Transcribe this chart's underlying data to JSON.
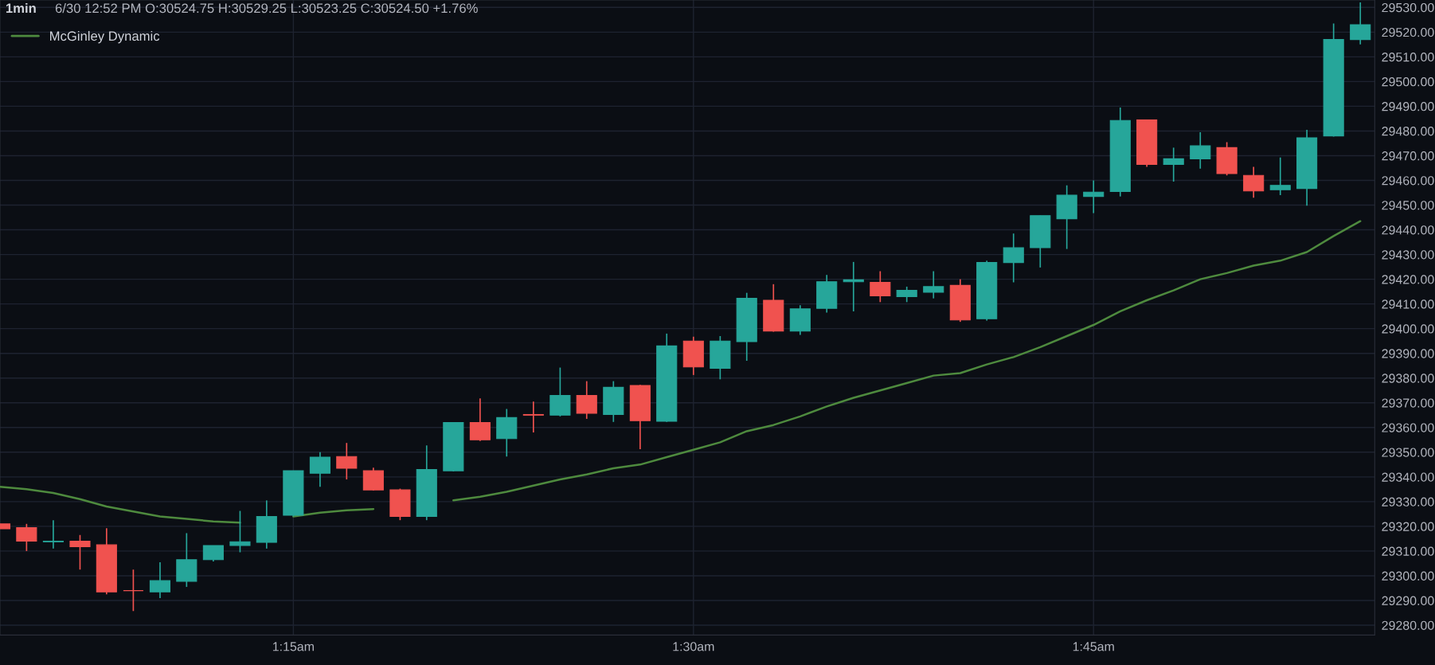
{
  "chart_data": {
    "type": "candlestick",
    "title": "1min",
    "subtitle": "6/30 12:52 PM O:30524.75 H:30529.25 L:30523.25 C:30524.50 +1.76%",
    "x": [
      1.0667,
      1.0833,
      1.1,
      1.1167,
      1.1333,
      1.15,
      1.1667,
      1.1833,
      1.2,
      1.2167,
      1.2333,
      1.25,
      1.2667,
      1.2833,
      1.3,
      1.3167,
      1.3333,
      1.35,
      1.3667,
      1.3833,
      1.4,
      1.4167,
      1.4333,
      1.45,
      1.4667,
      1.4833,
      1.5,
      1.5167,
      1.5333,
      1.55,
      1.5667,
      1.5833,
      1.6,
      1.6167,
      1.6333,
      1.65,
      1.6667,
      1.6833,
      1.7,
      1.7167,
      1.7333,
      1.75,
      1.7667,
      1.7833,
      1.8,
      1.8167,
      1.8333,
      1.85,
      1.8667,
      1.8833,
      1.9,
      1.9167
    ],
    "ohlc": [
      [
        29321,
        29321,
        29319,
        29319
      ],
      [
        29319.5,
        29321,
        29310,
        29314
      ],
      [
        29313.75,
        29322.5,
        29311,
        29314
      ],
      [
        29314,
        29316.5,
        29302.5,
        29311.75
      ],
      [
        29312.5,
        29319.25,
        29292.5,
        29293.5
      ],
      [
        29294,
        29302.5,
        29285.75,
        29294
      ],
      [
        29293.5,
        29305.5,
        29291,
        29298
      ],
      [
        29297.75,
        29317.25,
        29295.5,
        29306.5
      ],
      [
        29306.5,
        29312.25,
        29305.75,
        29312.25
      ],
      [
        29312.25,
        29326.25,
        29309.5,
        29313.75
      ],
      [
        29313.5,
        29330.5,
        29311,
        29324
      ],
      [
        29324.5,
        29342.5,
        29324,
        29342.5
      ],
      [
        29341.5,
        29350,
        29336,
        29348
      ],
      [
        29348.25,
        29353.75,
        29339,
        29343.5
      ],
      [
        29342.5,
        29343.75,
        29334.5,
        29334.75
      ],
      [
        29334.75,
        29335.25,
        29322.5,
        29324
      ],
      [
        29324,
        29352.75,
        29322.5,
        29343
      ],
      [
        29342.5,
        29362,
        29342.25,
        29362
      ],
      [
        29362,
        29371.75,
        29354.5,
        29355
      ],
      [
        29355.5,
        29367.5,
        29348.25,
        29364
      ],
      [
        29365.25,
        29370.5,
        29358,
        29365
      ],
      [
        29365,
        29384.25,
        29364.5,
        29373
      ],
      [
        29373,
        29378.75,
        29363.5,
        29365.75
      ],
      [
        29365.25,
        29378.75,
        29362.25,
        29376.25
      ],
      [
        29377,
        29377.25,
        29351.25,
        29362.75
      ],
      [
        29362.5,
        29398,
        29362.25,
        29393
      ],
      [
        29395,
        29396.75,
        29381.25,
        29384.5
      ],
      [
        29384,
        29397,
        29379.5,
        29395
      ],
      [
        29394.75,
        29414.5,
        29387,
        29412.25
      ],
      [
        29411.5,
        29418,
        29398.75,
        29399
      ],
      [
        29399,
        29409.5,
        29397.5,
        29408
      ],
      [
        29408.25,
        29421.75,
        29406.5,
        29419
      ],
      [
        29419,
        29427,
        29407,
        29419.75
      ],
      [
        29418.75,
        29423.25,
        29410.75,
        29413.25
      ],
      [
        29413,
        29417,
        29410.75,
        29415.5
      ],
      [
        29414.75,
        29423.25,
        29412.25,
        29417
      ],
      [
        29417.5,
        29420,
        29402.75,
        29403.5
      ],
      [
        29404,
        29427.5,
        29403.25,
        29426.75
      ],
      [
        29426.75,
        29438.5,
        29418.75,
        29432.75
      ],
      [
        29432.75,
        29445.75,
        29424.75,
        29445.75
      ],
      [
        29444.5,
        29458,
        29432.25,
        29454
      ],
      [
        29453.5,
        29460,
        29446.75,
        29455.25
      ],
      [
        29455.5,
        29489.5,
        29453.5,
        29484.25
      ],
      [
        29484.5,
        29484.5,
        29465.5,
        29466.5
      ],
      [
        29466.5,
        29473.25,
        29459.5,
        29468.75
      ],
      [
        29468.75,
        29479.5,
        29464.75,
        29474
      ],
      [
        29473.25,
        29475.5,
        29462,
        29462.75
      ],
      [
        29462,
        29465.5,
        29453,
        29455.75
      ],
      [
        29456.25,
        29469.25,
        29454,
        29458
      ],
      [
        29456.75,
        29480.5,
        29449.75,
        29477.25
      ],
      [
        29478,
        29523.5,
        29477.75,
        29517
      ],
      [
        29517,
        29532,
        29515,
        29523
      ]
    ],
    "colors": [
      "#f0524f",
      "#f0524f",
      "#26a69a",
      "#f0524f",
      "#f0524f",
      "#f0524f",
      "#26a69a",
      "#26a69a",
      "#26a69a",
      "#26a69a",
      "#26a69a",
      "#26a69a",
      "#26a69a",
      "#f0524f",
      "#f0524f",
      "#f0524f",
      "#26a69a",
      "#26a69a",
      "#f0524f",
      "#26a69a",
      "#f0524f",
      "#26a69a",
      "#f0524f",
      "#26a69a",
      "#f0524f",
      "#26a69a",
      "#f0524f",
      "#26a69a",
      "#26a69a",
      "#f0524f",
      "#26a69a",
      "#26a69a",
      "#26a69a",
      "#f0524f",
      "#26a69a",
      "#26a69a",
      "#f0524f",
      "#26a69a",
      "#26a69a",
      "#26a69a",
      "#26a69a",
      "#26a69a",
      "#26a69a",
      "#f0524f",
      "#26a69a",
      "#26a69a",
      "#f0524f",
      "#f0524f",
      "#26a69a",
      "#26a69a",
      "#26a69a",
      "#26a69a"
    ],
    "series": [
      {
        "name": "McGinley Dynamic",
        "type": "line",
        "color": "#4e8a3e",
        "values": [
          29336,
          29335,
          29333.5,
          29331,
          29328,
          29326,
          29324,
          29323,
          29322,
          29321.5,
          null,
          29324,
          29325.5,
          29326.5,
          29327,
          null,
          null,
          29330.5,
          29332,
          29334,
          29336.5,
          29339,
          29341,
          29343.5,
          29345,
          29348,
          29351,
          29354,
          29358.5,
          29361,
          29364.5,
          29368.5,
          29372,
          29375,
          29378,
          29381,
          29382,
          29385.5,
          29388.5,
          29392.5,
          29397,
          29401.5,
          29407,
          29411.5,
          29415.5,
          29420,
          29422.5,
          29425.5,
          29427.5,
          29431,
          29437.5,
          29443.5
        ]
      }
    ],
    "xlim": [
      1.0667,
      1.9257
    ],
    "xticks": [
      {
        "value": 1.25,
        "label": "1:15am"
      },
      {
        "value": 1.5,
        "label": "1:30am"
      },
      {
        "value": 1.75,
        "label": "1:45am"
      }
    ],
    "ylim": [
      29276,
      29533
    ],
    "yticks": [
      {
        "value": 29280,
        "label": "29280.00"
      },
      {
        "value": 29290,
        "label": "29290.00"
      },
      {
        "value": 29300,
        "label": "29300.00"
      },
      {
        "value": 29310,
        "label": "29310.00"
      },
      {
        "value": 29320,
        "label": "29320.00"
      },
      {
        "value": 29330,
        "label": "29330.00"
      },
      {
        "value": 29340,
        "label": "29340.00"
      },
      {
        "value": 29350,
        "label": "29350.00"
      },
      {
        "value": 29360,
        "label": "29360.00"
      },
      {
        "value": 29370,
        "label": "29370.00"
      },
      {
        "value": 29380,
        "label": "29380.00"
      },
      {
        "value": 29390,
        "label": "29390.00"
      },
      {
        "value": 29400,
        "label": "29400.00"
      },
      {
        "value": 29410,
        "label": "29410.00"
      },
      {
        "value": 29420,
        "label": "29420.00"
      },
      {
        "value": 29430,
        "label": "29430.00"
      },
      {
        "value": 29440,
        "label": "29440.00"
      },
      {
        "value": 29450,
        "label": "29450.00"
      },
      {
        "value": 29460,
        "label": "29460.00"
      },
      {
        "value": 29470,
        "label": "29470.00"
      },
      {
        "value": 29480,
        "label": "29480.00"
      },
      {
        "value": 29490,
        "label": "29490.00"
      },
      {
        "value": 29500,
        "label": "29500.00"
      },
      {
        "value": 29510,
        "label": "29510.00"
      },
      {
        "value": 29520,
        "label": "29520.00"
      },
      {
        "value": 29530,
        "label": "29530.00"
      }
    ],
    "grid": true,
    "legend": "top left"
  }
}
